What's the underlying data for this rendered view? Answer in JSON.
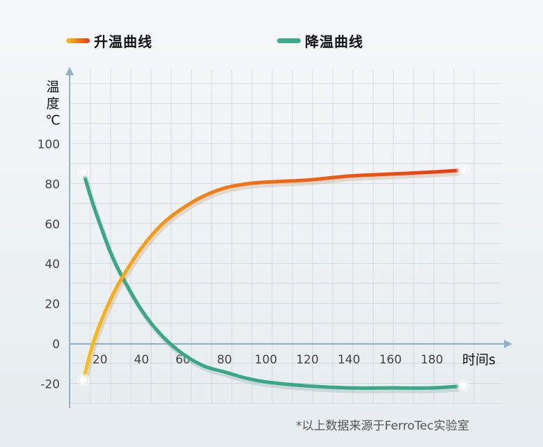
{
  "legend": {
    "heating": "升温曲线",
    "cooling": "降温曲线"
  },
  "colors": {
    "heating_start": "#f7c21a",
    "heating_end": "#ea3a12",
    "cooling": "#3aa886",
    "grid": "#cdd6dc",
    "axis": "#8fb2c4"
  },
  "footnote": "*以上数据来源于FerroTec实验室",
  "chart_data": {
    "type": "line",
    "ylabel": [
      "温",
      "度",
      "℃"
    ],
    "xlabel": "时间s",
    "x_ticks": [
      20,
      40,
      60,
      80,
      100,
      120,
      140,
      160,
      180
    ],
    "y_ticks": [
      100,
      80,
      60,
      40,
      20,
      0,
      -20
    ],
    "xlim": [
      5,
      200
    ],
    "ylim": [
      -30,
      130
    ],
    "grid": true,
    "legend_position": "top",
    "series": [
      {
        "name": "升温曲线",
        "x": [
          12,
          16,
          20,
          25,
          30,
          40,
          50,
          60,
          70,
          80,
          90,
          100,
          120,
          140,
          160,
          180,
          195
        ],
        "y": [
          -18,
          -2,
          10,
          22,
          32,
          48,
          60,
          68,
          74,
          78,
          80,
          81,
          82,
          84,
          85,
          86,
          87
        ]
      },
      {
        "name": "降温曲线",
        "x": [
          12,
          16,
          20,
          25,
          30,
          40,
          50,
          60,
          70,
          80,
          90,
          100,
          120,
          140,
          160,
          180,
          195
        ],
        "y": [
          86,
          72,
          60,
          46,
          35,
          17,
          4,
          -5,
          -11,
          -14,
          -17,
          -19,
          -21,
          -22,
          -22,
          -22,
          -21
        ]
      }
    ]
  }
}
